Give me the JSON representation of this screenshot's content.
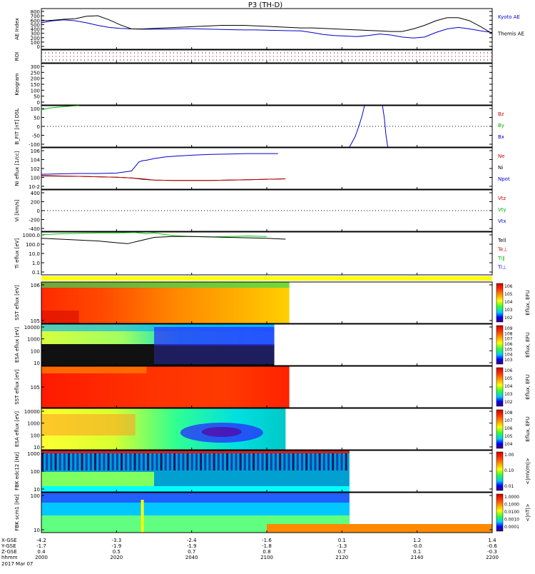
{
  "title": "P3 (TH-D)",
  "chart_data": {
    "type": "line",
    "title": "P3 (TH-D)",
    "xlabel": "hhmm",
    "date_label": "2017 Mar 07",
    "x_axis": {
      "rows": [
        {
          "label": "X-GSE",
          "values": [
            "-4.2",
            "-3.3",
            "-2.4",
            "-1.6",
            "0.1",
            "1.2",
            "1.4"
          ]
        },
        {
          "label": "Y-GSE",
          "values": [
            "-1.7",
            "-1.9",
            "-1.9",
            "-1.8",
            "-1.3",
            "-0.0",
            "-0.6"
          ]
        },
        {
          "label": "Z-GSE",
          "values": [
            "0.4",
            "0.5",
            "0.7",
            "0.8",
            "0.7",
            "0.1",
            "-0.3"
          ]
        },
        {
          "label": "hhmm",
          "values": [
            "2000",
            "2020",
            "2040",
            "2100",
            "2120",
            "2140",
            "2200"
          ]
        }
      ]
    },
    "panels": [
      {
        "id": "ae",
        "ylabel": "AE Index",
        "yticks": [
          "0",
          "100",
          "200",
          "300",
          "400",
          "500",
          "600",
          "700",
          "800"
        ],
        "ylim": [
          0,
          800
        ],
        "legend": [
          "Kyoto AE",
          "Themis AE"
        ],
        "legend_colors": [
          "#0000cc",
          "#000000"
        ],
        "series": [
          {
            "name": "Kyoto AE",
            "color": "#0000cc",
            "x": [
              0,
              3,
              6,
              9,
              12,
              15,
              18,
              21,
              24,
              27,
              30,
              33,
              36,
              39,
              42,
              45,
              48,
              51,
              54,
              57,
              60,
              63,
              66,
              69,
              72,
              75,
              78,
              81,
              84,
              87,
              90,
              93,
              96,
              99,
              102,
              105,
              108,
              111,
              114,
              117,
              120
            ],
            "y": [
              520,
              560,
              580,
              560,
              520,
              470,
              430,
              410,
              400,
              395,
              395,
              395,
              400,
              405,
              400,
              395,
              390,
              385,
              380,
              380,
              375,
              370,
              365,
              360,
              330,
              290,
              270,
              260,
              250,
              270,
              300,
              280,
              240,
              220,
              240,
              330,
              400,
              430,
              400,
              360,
              330
            ]
          },
          {
            "name": "Themis AE",
            "color": "#000000",
            "x": [
              0,
              3,
              6,
              9,
              12,
              15,
              18,
              21,
              24,
              27,
              30,
              33,
              36,
              39,
              42,
              45,
              48,
              51,
              54,
              57,
              60,
              63,
              66,
              69,
              72,
              75,
              78,
              81,
              84,
              87,
              90,
              93,
              96,
              99,
              102,
              105,
              108,
              111,
              114,
              117,
              120
            ],
            "y": [
              560,
              570,
              590,
              600,
              650,
              660,
              580,
              480,
              400,
              400,
              410,
              420,
              430,
              440,
              450,
              460,
              470,
              470,
              470,
              460,
              450,
              440,
              430,
              420,
              420,
              410,
              400,
              390,
              380,
              370,
              360,
              350,
              350,
              400,
              470,
              560,
              620,
              620,
              560,
              440,
              310
            ]
          }
        ]
      },
      {
        "id": "roi",
        "ylabel": "ROI",
        "yticks": []
      },
      {
        "id": "keogram",
        "ylabel": "Keogram",
        "yticks": [
          "0",
          "50",
          "100",
          "150",
          "200",
          "250",
          "300"
        ],
        "ylim": [
          0,
          300
        ]
      },
      {
        "id": "bfit",
        "ylabel": "B_FIT [nT] DSL",
        "yticks": [
          "-100",
          "-50",
          "0",
          "50",
          "100"
        ],
        "ylim": [
          -100,
          100
        ],
        "legend": [
          "Bz",
          "By",
          "Bx"
        ],
        "legend_colors": [
          "#cc0000",
          "#00aa00",
          "#0000cc"
        ],
        "series": [
          {
            "name": "By",
            "color": "#00bb00",
            "x": [
              0,
              2,
              4,
              6,
              8,
              10
            ],
            "y": [
              80,
              88,
              92,
              95,
              98,
              100
            ]
          },
          {
            "name": "Bx",
            "color": "#0000cc",
            "x": [
              82,
              83.5,
              84.5,
              85.5,
              86
            ],
            "y": [
              -100,
              -50,
              0,
              60,
              100
            ]
          },
          {
            "name": "Bx",
            "color": "#0000cc",
            "x": [
              90.8,
              91.3,
              91.7,
              92.2
            ],
            "y": [
              100,
              40,
              -40,
              -100
            ]
          }
        ]
      },
      {
        "id": "ni",
        "ylabel": "Ni eflux [1/cc]",
        "yticks": [
          "10-2",
          "100",
          "102",
          "104",
          "106"
        ],
        "ylim": [
          -3,
          7
        ],
        "log": true,
        "legend": [
          "Ne",
          "Ni",
          "Npot"
        ],
        "legend_colors": [
          "#cc0000",
          "#000000",
          "#0000cc"
        ],
        "series": [
          {
            "name": "Npot",
            "color": "#0000cc",
            "x": [
              0,
              5,
              10,
              15,
              20,
              24,
              25,
              26,
              27,
              28,
              30,
              33,
              36,
              40,
              45,
              50,
              55,
              60,
              63
            ],
            "y": [
              0.6,
              0.7,
              0.8,
              0.8,
              0.9,
              1.4,
              2.5,
              3.6,
              3.9,
              4.0,
              4.4,
              4.8,
              5.0,
              5.2,
              5.4,
              5.5,
              5.6,
              5.6,
              5.6
            ]
          },
          {
            "name": "Ni",
            "color": "#000000",
            "x": [
              0,
              5,
              10,
              15,
              20,
              24,
              27,
              30,
              35,
              40,
              45,
              50,
              55,
              60,
              65
            ],
            "y": [
              0.2,
              0.15,
              0.1,
              0.0,
              -0.1,
              -0.3,
              -0.6,
              -0.8,
              -0.9,
              -0.9,
              -0.9,
              -0.8,
              -0.7,
              -0.6,
              -0.5
            ]
          },
          {
            "name": "Ne",
            "color": "#cc0000",
            "x": [
              0,
              5,
              10,
              15,
              20,
              24,
              27,
              30,
              35,
              40,
              45,
              50,
              55,
              60,
              65
            ],
            "y": [
              0.3,
              0.2,
              0.1,
              0.0,
              -0.1,
              -0.3,
              -0.5,
              -0.8,
              -0.9,
              -0.9,
              -0.9,
              -0.8,
              -0.7,
              -0.6,
              -0.5
            ]
          }
        ]
      },
      {
        "id": "vi",
        "ylabel": "Vi [km/s]",
        "yticks": [
          "-400",
          "-200",
          "0",
          "200",
          "400"
        ],
        "ylim": [
          -500,
          500
        ],
        "legend": [
          "Vtz",
          "Vty",
          "Vtx"
        ],
        "legend_colors": [
          "#cc0000",
          "#00aa00",
          "#0000cc"
        ]
      },
      {
        "id": "ti",
        "ylabel": "Ti eflux [eV]",
        "yticks": [
          "0.1",
          "1.0",
          "10.0",
          "100.0",
          "1000.0"
        ],
        "ylim": [
          -1.4,
          3.4
        ],
        "log": true,
        "legend": [
          "Tell",
          "Te⊥",
          "Ti∥",
          "Ti⊥"
        ],
        "legend_colors": [
          "#000000",
          "#cc0000",
          "#00aa00",
          "#0000cc"
        ],
        "series": [
          {
            "name": "Ti∥",
            "color": "#00cc00",
            "x": [
              0,
              5,
              10,
              15,
              20,
              25,
              28,
              30,
              35,
              40,
              45,
              50,
              55,
              60
            ],
            "y": [
              3.1,
              3.2,
              3.25,
              3.3,
              3.3,
              3.35,
              3.2,
              3.3,
              3.0,
              2.9,
              2.85,
              2.9,
              2.95,
              2.9
            ]
          },
          {
            "name": "Tell",
            "color": "#000000",
            "x": [
              0,
              5,
              10,
              15,
              20,
              23,
              26,
              28,
              30,
              35,
              40,
              45,
              50,
              55,
              60,
              65
            ],
            "y": [
              2.7,
              2.6,
              2.5,
              2.4,
              2.2,
              2.1,
              2.4,
              2.6,
              2.8,
              2.9,
              2.9,
              2.85,
              2.8,
              2.75,
              2.7,
              2.6
            ]
          }
        ]
      },
      {
        "id": "sst_e",
        "ylabel": "SST eflux [eV]",
        "yticks": [
          "105",
          "106"
        ],
        "colorbar": {
          "title": "Eflux, EFU",
          "ticks": [
            "106",
            "105",
            "104",
            "103",
            "102"
          ]
        }
      },
      {
        "id": "esa_e",
        "ylabel": "ESA eflux [eV]",
        "yticks": [
          "10",
          "100",
          "1000",
          "10000"
        ],
        "colorbar": {
          "title": "Eflux, EFU",
          "ticks": [
            "109",
            "108",
            "107",
            "106",
            "105",
            "104",
            "103"
          ]
        }
      },
      {
        "id": "sst_i",
        "ylabel": "SST eflux [eV]",
        "yticks": [
          "105"
        ],
        "colorbar": {
          "title": "Eflux, EFU",
          "ticks": [
            "106",
            "105",
            "104",
            "103",
            "102"
          ]
        }
      },
      {
        "id": "esa_i",
        "ylabel": "ESA eflux [eV]",
        "yticks": [
          "10",
          "100",
          "1000",
          "10000"
        ],
        "colorbar": {
          "title": "Eflux, EFU",
          "ticks": [
            "108",
            "107",
            "106",
            "105",
            "104"
          ]
        }
      },
      {
        "id": "fbk1",
        "ylabel": "FBK edc12 [Hz]",
        "yticks": [
          "10",
          "100",
          "1000"
        ],
        "colorbar": {
          "title": "<|mV/m|>",
          "ticks": [
            "1.00",
            "0.10",
            "0.01"
          ]
        }
      },
      {
        "id": "fbk2",
        "ylabel": "FBK scm1 [Hz]",
        "yticks": [
          "10",
          "100"
        ],
        "colorbar": {
          "title": "<|nT|>",
          "ticks": [
            "1.0000",
            "0.1000",
            "0.0100",
            "0.0010",
            "0.0001"
          ]
        }
      }
    ]
  }
}
